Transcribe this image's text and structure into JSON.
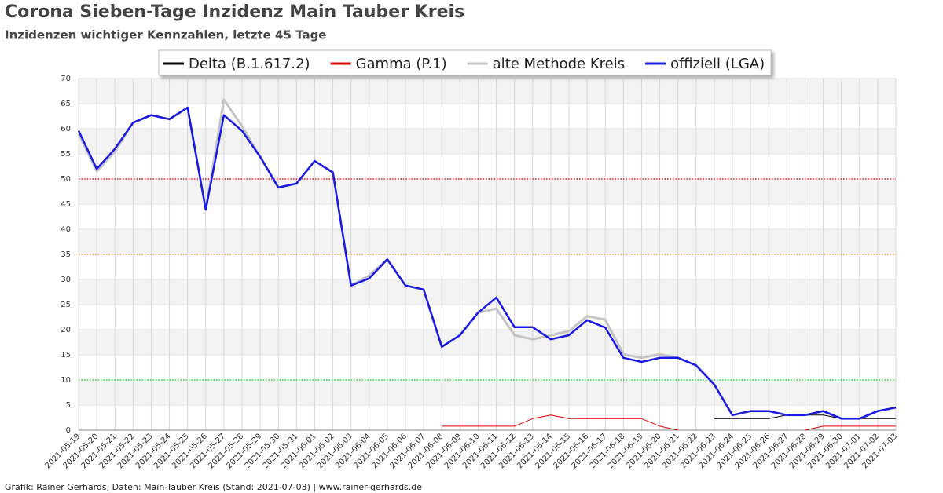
{
  "chart_data": {
    "type": "line",
    "title": "Corona Sieben-Tage Inzidenz Main Tauber Kreis",
    "subtitle": "Inzidenzen wichtiger Kennzahlen, letzte 45 Tage",
    "footer": "Grafik: Rainer Gerhards, Daten: Main-Tauber Kreis (Stand: 2021-07-03) | www.rainer-gerhards.de",
    "categories": [
      "2021-05-19",
      "2021-05-20",
      "2021-05-21",
      "2021-05-22",
      "2021-05-23",
      "2021-05-24",
      "2021-05-25",
      "2021-05-26",
      "2021-05-27",
      "2021-05-28",
      "2021-05-29",
      "2021-05-30",
      "2021-05-31",
      "2021-06-01",
      "2021-06-02",
      "2021-06-03",
      "2021-06-04",
      "2021-06-05",
      "2021-06-06",
      "2021-06-07",
      "2021-06-08",
      "2021-06-09",
      "2021-06-10",
      "2021-06-11",
      "2021-06-12",
      "2021-06-13",
      "2021-06-14",
      "2021-06-15",
      "2021-06-16",
      "2021-06-17",
      "2021-06-18",
      "2021-06-19",
      "2021-06-20",
      "2021-06-21",
      "2021-06-22",
      "2021-06-23",
      "2021-06-24",
      "2021-06-25",
      "2021-06-26",
      "2021-06-27",
      "2021-06-28",
      "2021-06-29",
      "2021-06-30",
      "2021-07-01",
      "2021-07-02",
      "2021-07-03"
    ],
    "series": [
      {
        "name": "Delta (B.1.617.2)",
        "color": "#000000",
        "values": [
          null,
          null,
          null,
          null,
          null,
          null,
          null,
          null,
          null,
          null,
          null,
          null,
          null,
          null,
          null,
          null,
          null,
          null,
          null,
          null,
          null,
          null,
          null,
          null,
          null,
          null,
          null,
          null,
          null,
          null,
          null,
          null,
          null,
          null,
          null,
          2.3,
          2.3,
          2.3,
          2.3,
          3.0,
          3.0,
          3.0,
          2.3,
          2.3,
          2.3,
          2.3
        ]
      },
      {
        "name": "Gamma (P.1)",
        "color": "#e00000",
        "values": [
          null,
          null,
          null,
          null,
          null,
          null,
          null,
          null,
          null,
          null,
          null,
          null,
          null,
          null,
          null,
          null,
          null,
          null,
          null,
          null,
          0.8,
          0.8,
          0.8,
          0.8,
          0.8,
          2.3,
          3.0,
          2.3,
          2.3,
          2.3,
          2.3,
          2.3,
          0.8,
          0,
          null,
          null,
          null,
          null,
          null,
          null,
          0,
          0.8,
          0.8,
          0.8,
          0.8,
          0.8
        ]
      },
      {
        "name": "alte Methode Kreis",
        "color": "#c4c4c4",
        "values": [
          59.0,
          51.5,
          55.5,
          61.2,
          62.7,
          61.9,
          64.2,
          43.9,
          65.8,
          60.5,
          54.4,
          48.3,
          49.1,
          53.6,
          51.3,
          28.8,
          30.8,
          34.0,
          28.8,
          28.0,
          16.6,
          18.9,
          23.4,
          24.2,
          18.9,
          18.1,
          18.9,
          19.7,
          22.7,
          22.0,
          15.1,
          14.4,
          15.1,
          14.4,
          12.9,
          9.1,
          3.0,
          3.8,
          3.8,
          3.0,
          3.0,
          3.8,
          2.3,
          2.3,
          3.8,
          4.5
        ]
      },
      {
        "name": "offiziell (LGA)",
        "color": "#1a1ae6",
        "values": [
          59.6,
          52.0,
          56.0,
          61.2,
          62.7,
          61.9,
          64.2,
          43.9,
          62.7,
          59.6,
          54.4,
          48.3,
          49.1,
          53.6,
          51.3,
          28.8,
          30.2,
          34.0,
          28.8,
          28.0,
          16.6,
          18.9,
          23.4,
          26.4,
          20.5,
          20.5,
          18.1,
          18.9,
          21.9,
          20.4,
          14.4,
          13.6,
          14.4,
          14.4,
          12.9,
          9.1,
          3.0,
          3.8,
          3.8,
          3.0,
          3.0,
          3.8,
          2.3,
          2.3,
          3.8,
          4.5
        ]
      }
    ],
    "reference_lines": [
      {
        "value": 50,
        "color": "#e00000"
      },
      {
        "value": 35,
        "color": "#f0a000"
      },
      {
        "value": 10,
        "color": "#20d020"
      }
    ],
    "ylim": [
      0,
      70
    ],
    "yticks": [
      0,
      5,
      10,
      15,
      20,
      25,
      30,
      35,
      40,
      45,
      50,
      55,
      60,
      65,
      70
    ],
    "grid": true,
    "legend": "top"
  }
}
